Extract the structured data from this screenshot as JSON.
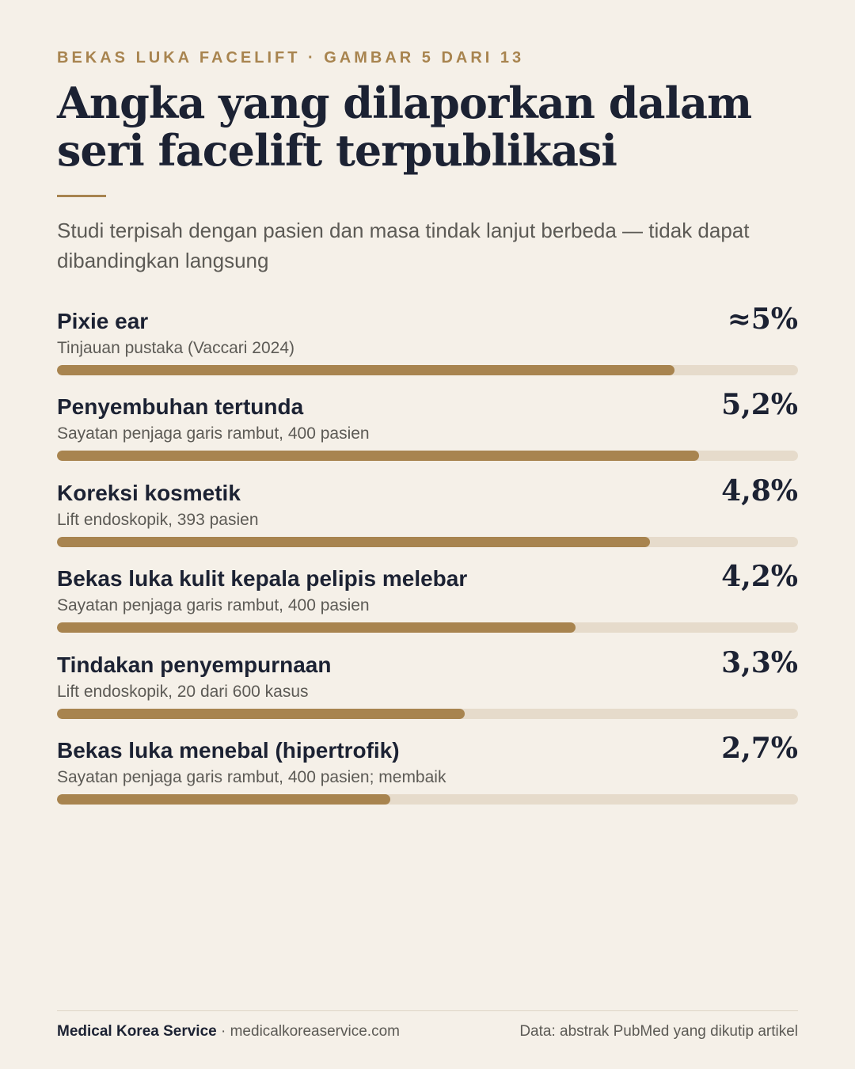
{
  "header": {
    "eyebrow": "BEKAS LUKA FACELIFT · GAMBAR 5 DARI 13",
    "title_line1": "Angka yang dilaporkan dalam",
    "title_line2": "seri facelift terpublikasi",
    "subtitle": "Studi terpisah dengan pasien dan masa tindak lanjut berbeda — tidak dapat dibandingkan langsung"
  },
  "chart_data": {
    "type": "bar",
    "orientation": "horizontal",
    "xlim": [
      0,
      6
    ],
    "categories": [
      "Pixie ear",
      "Penyembuhan tertunda",
      "Koreksi kosmetik",
      "Bekas luka kulit kepala pelipis melebar",
      "Tindakan penyempurnaan",
      "Bekas luka menebal (hipertrofik)"
    ],
    "sources": [
      "Tinjauan pustaka (Vaccari 2024)",
      "Sayatan penjaga garis rambut, 400 pasien",
      "Lift endoskopik, 393 pasien",
      "Sayatan penjaga garis rambut, 400 pasien",
      "Lift endoskopik, 20 dari 600 kasus",
      "Sayatan penjaga garis rambut, 400 pasien; membaik"
    ],
    "values": [
      5.0,
      5.2,
      4.8,
      4.2,
      3.3,
      2.7
    ],
    "value_labels": [
      "≈5%",
      "5,2%",
      "4,8%",
      "4,2%",
      "3,3%",
      "2,7%"
    ],
    "colors": {
      "bar": "#a8844f",
      "track": "#e6dbcb"
    }
  },
  "footer": {
    "brand": "Medical Korea Service",
    "separator": " · ",
    "site": "medicalkoreaservice.com",
    "credit": "Data: abstrak PubMed yang dikutip artikel"
  }
}
